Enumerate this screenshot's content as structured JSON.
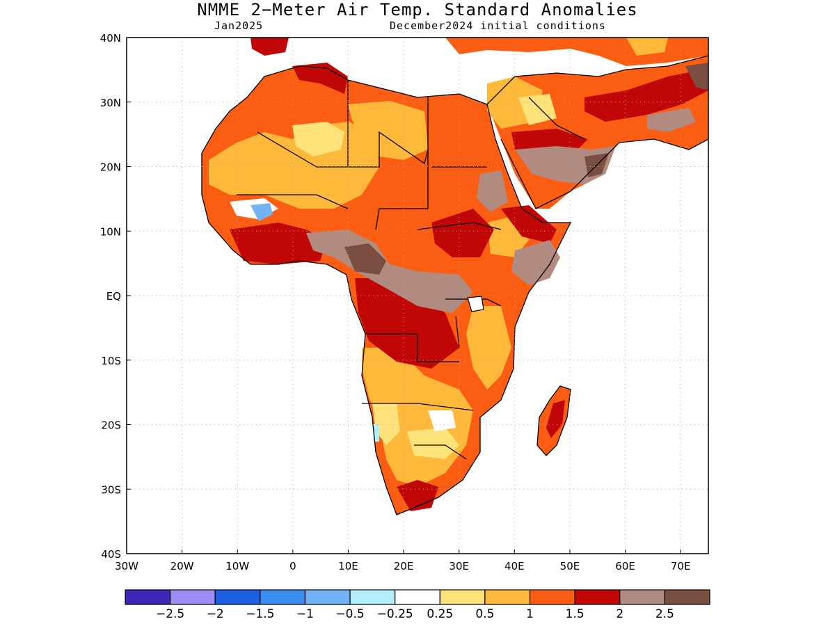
{
  "title": "NMME 2−Meter Air Temp. Standard Anomalies",
  "subtitle_left": "Jan2025",
  "subtitle_right": "December2024 initial conditions",
  "map": {
    "lon_range": [
      -30,
      75
    ],
    "lat_range": [
      -40,
      40
    ],
    "x_ticks": [
      {
        "value": -30,
        "label": "30W"
      },
      {
        "value": -20,
        "label": "20W"
      },
      {
        "value": -10,
        "label": "10W"
      },
      {
        "value": 0,
        "label": "0"
      },
      {
        "value": 10,
        "label": "10E"
      },
      {
        "value": 20,
        "label": "20E"
      },
      {
        "value": 30,
        "label": "30E"
      },
      {
        "value": 40,
        "label": "40E"
      },
      {
        "value": 50,
        "label": "50E"
      },
      {
        "value": 60,
        "label": "60E"
      },
      {
        "value": 70,
        "label": "70E"
      }
    ],
    "y_ticks": [
      {
        "value": 40,
        "label": "40N"
      },
      {
        "value": 30,
        "label": "30N"
      },
      {
        "value": 20,
        "label": "20N"
      },
      {
        "value": 10,
        "label": "10N"
      },
      {
        "value": 0,
        "label": "EQ"
      },
      {
        "value": -10,
        "label": "10S"
      },
      {
        "value": -20,
        "label": "20S"
      },
      {
        "value": -30,
        "label": "30S"
      },
      {
        "value": -40,
        "label": "40S"
      }
    ],
    "grid": true
  },
  "legend": {
    "colors": [
      "#3b26b8",
      "#9d8cf4",
      "#1c5fe2",
      "#3a8eef",
      "#73b3f5",
      "#b2effa",
      "#ffffff",
      "#ffe27a",
      "#ffb93a",
      "#fb5e12",
      "#c10606",
      "#b18a80",
      "#7a4e40"
    ],
    "labels": [
      "−2.5",
      "−2",
      "−1.5",
      "−1",
      "−0.5",
      "−0.25",
      "0.25",
      "0.5",
      "1",
      "1.5",
      "2",
      "2.5"
    ]
  },
  "colors": {
    "above_0_25": "#ffe27a",
    "above_0_5": "#ffb93a",
    "above_1": "#fb5e12",
    "above_1_5": "#c10606",
    "above_2": "#b18a80",
    "above_2_5": "#7a4e40",
    "below_0_25": "#b2effa",
    "below_0_5": "#73b3f5"
  }
}
